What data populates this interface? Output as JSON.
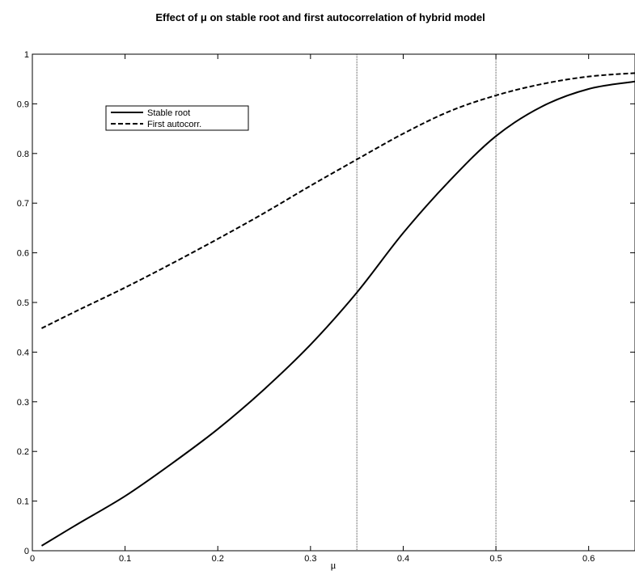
{
  "chart_data": {
    "type": "line",
    "title": "Effect of μ on stable root and first autocorrelation of hybrid model",
    "xlabel": "μ",
    "ylabel": "",
    "xlim": [
      0,
      0.65
    ],
    "ylim": [
      0,
      1
    ],
    "x_ticks": [
      "0",
      "0.1",
      "0.2",
      "0.3",
      "0.4",
      "0.5",
      "0.6"
    ],
    "y_ticks": [
      "0",
      "0.1",
      "0.2",
      "0.3",
      "0.4",
      "0.5",
      "0.6",
      "0.7",
      "0.8",
      "0.9",
      "1"
    ],
    "grid": false,
    "legend_position": "upper-left",
    "vertical_reference_lines": [
      0.35,
      0.5
    ],
    "series": [
      {
        "name": "Stable root",
        "style": "solid",
        "color": "#000000",
        "x": [
          0.01,
          0.05,
          0.1,
          0.15,
          0.2,
          0.25,
          0.3,
          0.35,
          0.4,
          0.45,
          0.5,
          0.55,
          0.6,
          0.65
        ],
        "y": [
          0.01,
          0.055,
          0.11,
          0.175,
          0.245,
          0.325,
          0.415,
          0.52,
          0.64,
          0.745,
          0.835,
          0.895,
          0.93,
          0.945
        ]
      },
      {
        "name": "First autocorr.",
        "style": "dashed",
        "color": "#000000",
        "x": [
          0.01,
          0.05,
          0.1,
          0.15,
          0.2,
          0.25,
          0.3,
          0.35,
          0.4,
          0.45,
          0.5,
          0.55,
          0.6,
          0.65
        ],
        "y": [
          0.448,
          0.485,
          0.53,
          0.578,
          0.628,
          0.68,
          0.735,
          0.788,
          0.84,
          0.885,
          0.917,
          0.94,
          0.955,
          0.962
        ]
      }
    ]
  }
}
